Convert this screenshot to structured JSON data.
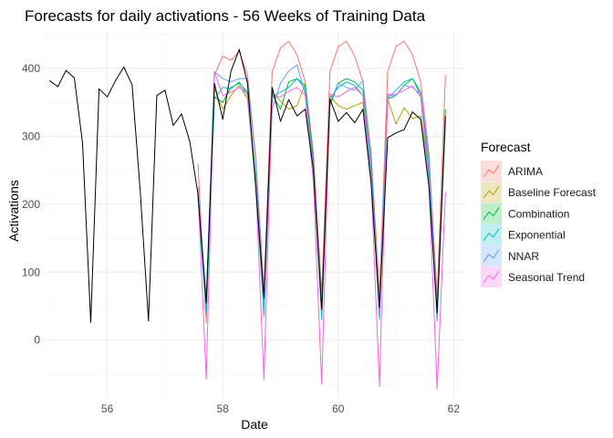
{
  "chart_data": {
    "type": "line",
    "title": "Forecasts for daily activations - 56 Weeks of Training Data",
    "xlabel": "Date",
    "ylabel": "Activations",
    "xlim": [
      54.9,
      62.2
    ],
    "ylim": [
      -85,
      455
    ],
    "x_ticks": [
      56,
      58,
      60,
      62
    ],
    "y_ticks": [
      0,
      100,
      200,
      300,
      400
    ],
    "grid": true,
    "legend": {
      "title": "Forecast",
      "position": "right"
    },
    "actual": {
      "color": "#000000",
      "x": [
        55.0,
        55.143,
        55.286,
        55.429,
        55.571,
        55.714,
        55.857,
        56.0,
        56.143,
        56.286,
        56.429,
        56.571,
        56.714,
        56.857,
        57.0,
        57.143,
        57.286,
        57.429,
        57.571,
        57.714,
        57.857,
        58.0,
        58.143,
        58.286,
        58.429,
        58.571,
        58.714,
        58.857,
        59.0,
        59.143,
        59.286,
        59.429,
        59.571,
        59.714,
        59.857,
        60.0,
        60.143,
        60.286,
        60.429,
        60.571,
        60.714,
        60.857,
        61.0,
        61.143,
        61.286,
        61.429,
        61.571,
        61.714,
        61.857
      ],
      "values": [
        382,
        373,
        397,
        386,
        290,
        26,
        370,
        358,
        382,
        402,
        376,
        218,
        28,
        360,
        368,
        316,
        333,
        292,
        215,
        55,
        378,
        325,
        396,
        428,
        378,
        226,
        62,
        372,
        322,
        354,
        330,
        340,
        250,
        45,
        355,
        322,
        335,
        320,
        340,
        230,
        48,
        298,
        305,
        310,
        336,
        325,
        226,
        40,
        330
      ]
    },
    "forecast_x": [
      57.571,
      57.714,
      57.857,
      58.0,
      58.143,
      58.286,
      58.429,
      58.571,
      58.714,
      58.857,
      59.0,
      59.143,
      59.286,
      59.429,
      59.571,
      59.714,
      59.857,
      60.0,
      60.143,
      60.286,
      60.429,
      60.571,
      60.714,
      60.857,
      61.0,
      61.143,
      61.286,
      61.429,
      61.571,
      61.714,
      61.857
    ],
    "series": [
      {
        "name": "ARIMA",
        "color": "#F8766D",
        "values": [
          260,
          25,
          390,
          418,
          412,
          425,
          390,
          270,
          75,
          395,
          430,
          440,
          420,
          380,
          275,
          70,
          395,
          432,
          440,
          418,
          380,
          275,
          68,
          395,
          432,
          440,
          420,
          380,
          275,
          65,
          390
        ]
      },
      {
        "name": "Baseline Forecast",
        "color": "#B79F00",
        "values": [
          215,
          50,
          370,
          340,
          360,
          375,
          355,
          230,
          60,
          365,
          352,
          340,
          345,
          378,
          250,
          45,
          360,
          345,
          340,
          345,
          350,
          245,
          45,
          355,
          318,
          342,
          326,
          330,
          240,
          40,
          330
        ]
      },
      {
        "name": "Combination",
        "color": "#00BA38",
        "values": [
          215,
          40,
          358,
          350,
          372,
          378,
          365,
          240,
          45,
          362,
          340,
          380,
          385,
          375,
          265,
          40,
          345,
          378,
          385,
          380,
          368,
          265,
          40,
          355,
          360,
          375,
          385,
          365,
          265,
          40,
          340
        ]
      },
      {
        "name": "Exponential",
        "color": "#00BFC4",
        "values": [
          210,
          40,
          355,
          372,
          370,
          380,
          360,
          230,
          35,
          358,
          365,
          372,
          385,
          370,
          252,
          30,
          356,
          372,
          380,
          375,
          360,
          250,
          30,
          356,
          368,
          380,
          385,
          360,
          248,
          28,
          325
        ]
      },
      {
        "name": "NNAR",
        "color": "#619CFF",
        "values": [
          225,
          60,
          395,
          385,
          380,
          385,
          385,
          265,
          50,
          340,
          378,
          396,
          405,
          362,
          258,
          45,
          350,
          378,
          372,
          368,
          382,
          260,
          40,
          360,
          360,
          375,
          372,
          362,
          270,
          40,
          322
        ]
      },
      {
        "name": "Seasonal Trend",
        "color": "#F564E3",
        "values": [
          220,
          -57,
          395,
          360,
          365,
          372,
          362,
          230,
          -58,
          360,
          358,
          366,
          372,
          360,
          232,
          -65,
          362,
          358,
          366,
          372,
          360,
          232,
          -68,
          362,
          362,
          368,
          374,
          358,
          232,
          -72,
          218
        ]
      }
    ]
  }
}
